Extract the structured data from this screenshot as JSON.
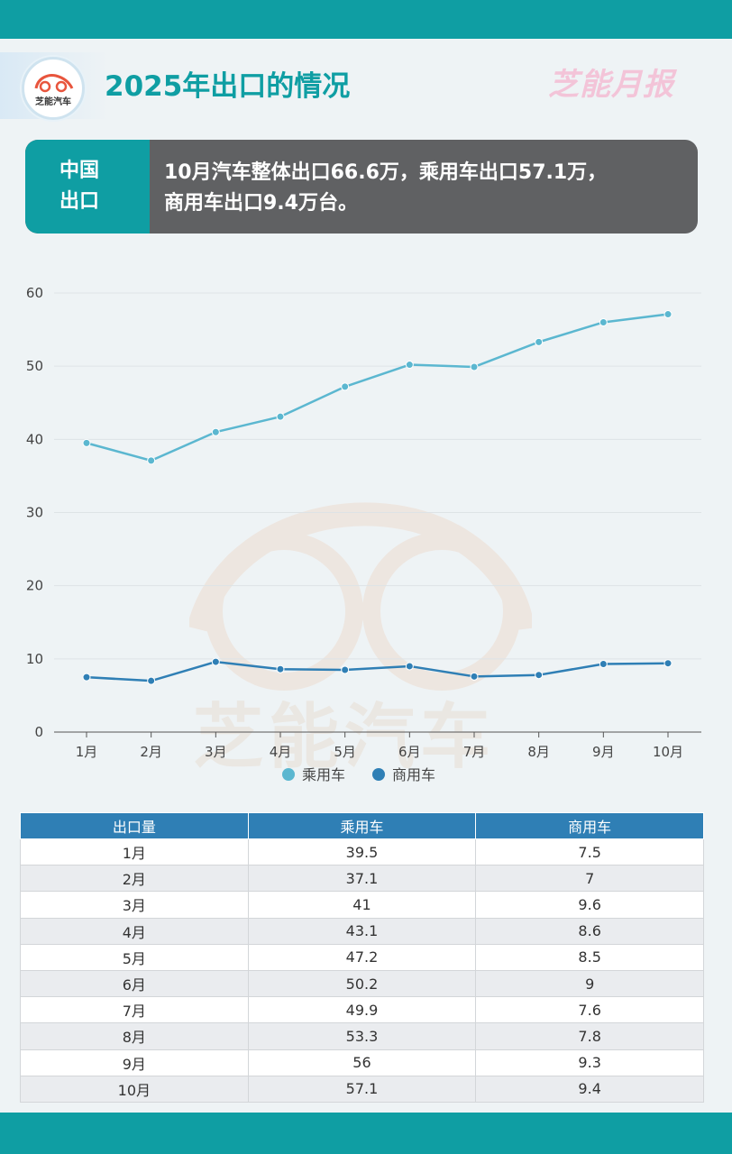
{
  "header": {
    "title": "2025年出口的情况",
    "logo_text": "芝能汽车",
    "brand": "芝能月报"
  },
  "summary": {
    "label_line1": "中国",
    "label_line2": "出口",
    "text_line1": "10月汽车整体出口66.6万，乘用车出口57.1万，",
    "text_line2": "商用车出口9.4万台。"
  },
  "watermark": {
    "text": "芝能汽车"
  },
  "colors": {
    "accent": "#0f9ea3",
    "passenger": "#5bb7d0",
    "commercial": "#2f7fb5",
    "summary_bg": "#606163"
  },
  "chart_data": {
    "type": "line",
    "categories": [
      "1月",
      "2月",
      "3月",
      "4月",
      "5月",
      "6月",
      "7月",
      "8月",
      "9月",
      "10月"
    ],
    "series": [
      {
        "name": "乘用车",
        "values": [
          39.5,
          37.1,
          41,
          43.1,
          47.2,
          50.2,
          49.9,
          53.3,
          56,
          57.1
        ]
      },
      {
        "name": "商用车",
        "values": [
          7.5,
          7,
          9.6,
          8.6,
          8.5,
          9,
          7.6,
          7.8,
          9.3,
          9.4
        ]
      }
    ],
    "ylim": [
      0,
      60
    ],
    "yticks": [
      0,
      10,
      20,
      30,
      40,
      50,
      60
    ],
    "grid": true,
    "legend": "bottom-center"
  },
  "table": {
    "headers": [
      "出口量",
      "乘用车",
      "商用车"
    ],
    "rows": [
      [
        "1月",
        "39.5",
        "7.5"
      ],
      [
        "2月",
        "37.1",
        "7"
      ],
      [
        "3月",
        "41",
        "9.6"
      ],
      [
        "4月",
        "43.1",
        "8.6"
      ],
      [
        "5月",
        "47.2",
        "8.5"
      ],
      [
        "6月",
        "50.2",
        "9"
      ],
      [
        "7月",
        "49.9",
        "7.6"
      ],
      [
        "8月",
        "53.3",
        "7.8"
      ],
      [
        "9月",
        "56",
        "9.3"
      ],
      [
        "10月",
        "57.1",
        "9.4"
      ]
    ]
  }
}
